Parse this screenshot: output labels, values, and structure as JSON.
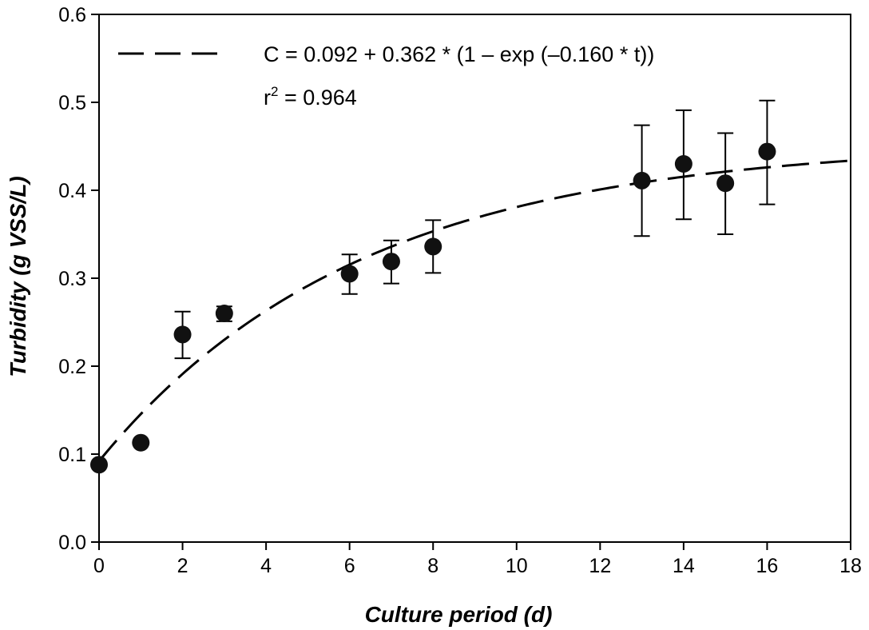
{
  "chart_data": {
    "type": "scatter",
    "title": "",
    "xlabel": "Culture period (d)",
    "ylabel": "Turbidity (g VSS/L)",
    "xlim": [
      0,
      18
    ],
    "ylim": [
      0.0,
      0.6
    ],
    "xticks": [
      0,
      2,
      4,
      6,
      8,
      10,
      12,
      14,
      16,
      18
    ],
    "xtick_labels": [
      "0",
      "2",
      "4",
      "6",
      "8",
      "10",
      "12",
      "14",
      "16",
      "18"
    ],
    "yticks": [
      0.0,
      0.1,
      0.2,
      0.3,
      0.4,
      0.5,
      0.6
    ],
    "ytick_labels": [
      "0.0",
      "0.1",
      "0.2",
      "0.3",
      "0.4",
      "0.5",
      "0.6"
    ],
    "grid": false,
    "legend_position": "top-left",
    "series": [
      {
        "marker": "filled-circle",
        "x": [
          0,
          1,
          2,
          3,
          6,
          7,
          8,
          13,
          14,
          15,
          16
        ],
        "y": [
          0.088,
          0.113,
          0.236,
          0.26,
          0.305,
          0.319,
          0.336,
          0.411,
          0.43,
          0.408,
          0.444
        ],
        "error_low": [
          null,
          null,
          0.209,
          0.251,
          0.282,
          0.294,
          0.306,
          0.348,
          0.367,
          0.35,
          0.384
        ],
        "error_high": [
          null,
          null,
          0.262,
          0.268,
          0.327,
          0.343,
          0.366,
          0.474,
          0.491,
          0.465,
          0.502
        ]
      }
    ],
    "fit": {
      "line_style": "dashed",
      "c0": 0.092,
      "a": 0.362,
      "k": 0.16,
      "x_range": [
        0,
        18
      ],
      "equation_label": "C = 0.092 + 0.362 * (1 – exp (–0.160 * t))",
      "r2_label_base": "r",
      "r2_label_sup": "2",
      "r2_label_value": " = 0.964"
    }
  }
}
